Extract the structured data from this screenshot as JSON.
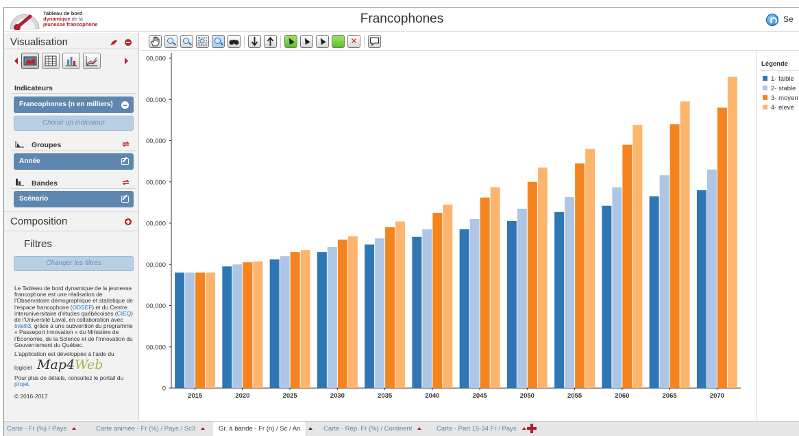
{
  "app": {
    "title": "Francophones",
    "logo": {
      "line1": "Tableau de bord",
      "line2a": "dynamique",
      "line2b": " de la",
      "line3": "jeunesse francophone"
    },
    "header_right": "Se"
  },
  "sidebar": {
    "visualisation_title": "Visualisation",
    "indicators_label": "Indicateurs",
    "indicator_selected": "Francophones (n en milliers)",
    "choose_indicator": "Choisir un indicateur",
    "groups_label": "Groupes",
    "groups_value": "Année",
    "bands_label": "Bandes",
    "bands_value": "Scénario",
    "composition_title": "Composition",
    "filters_title": "Filtres",
    "change_filters": "Changer les filtres",
    "info_text_1": "Le Tableau de bord dynamique de la jeunesse francophone est une réalisation de l'Observatoire démographique et statistique de l'espace francophone (",
    "info_link_odsef": "ODSEF",
    "info_text_2": ") et du Centre interuniversitaire d'études québécoises (",
    "info_link_cieq": "CIEQ",
    "info_text_3": ") de l'Université Laval, en collaboration avec ",
    "info_link_intelli3": "Intelli3",
    "info_text_4": ", grâce à une subvention du programme « Passeport Innovation » du Ministère de l'Économie, de la Science et de l'Innovation du Gouvernement du Québec.",
    "dev_line": "L'application est développée à l'aide du",
    "logiciel": "logiciel",
    "map4web_a": "Map4",
    "map4web_b": "Web",
    "details_text": "Pour plus de détails, consultez le portail du ",
    "details_link": "projet",
    "details_end": ".",
    "copyright": "© 2016-2017"
  },
  "legend": {
    "title": "Légende",
    "items": [
      {
        "label": "1- faible",
        "color": "#2f77b4"
      },
      {
        "label": "2- stable",
        "color": "#aec6e6"
      },
      {
        "label": "3- moyen",
        "color": "#f5841f"
      },
      {
        "label": "4- élevé",
        "color": "#fdb56e"
      }
    ]
  },
  "tabs": [
    {
      "label": "Carte - Fr (%) / Pays"
    },
    {
      "label": "Carte animée - Fr (%) / Pays / Sc3"
    },
    {
      "label": "Gr. à bande - Fr (n) / Sc / An"
    },
    {
      "label": "Carte - Rép. Fr (%) / Continent"
    },
    {
      "label": "Carte - Part 15-34 Fr / Pays"
    }
  ],
  "chart_data": {
    "type": "bar",
    "categories": [
      "2015",
      "2020",
      "2025",
      "2030",
      "2035",
      "2040",
      "2045",
      "2050",
      "2055",
      "2060",
      "2065",
      "2070"
    ],
    "y_tick_labels": [
      "0",
      "00,000",
      "00,000",
      "00,000",
      "00,000",
      "00,000",
      "00,000",
      "00,000",
      "00,000"
    ],
    "ylim": [
      0,
      8
    ],
    "y_ticks": [
      0,
      1,
      2,
      3,
      4,
      5,
      6,
      7,
      8
    ],
    "grid": false,
    "series": [
      {
        "name": "1- faible",
        "color": "#2f77b4",
        "values": [
          2.8,
          2.95,
          3.12,
          3.3,
          3.48,
          3.67,
          3.85,
          4.05,
          4.27,
          4.42,
          4.65,
          4.8
        ]
      },
      {
        "name": "2- stable",
        "color": "#aec6e6",
        "values": [
          2.8,
          3.0,
          3.2,
          3.42,
          3.63,
          3.85,
          4.1,
          4.35,
          4.63,
          4.87,
          5.16,
          5.3
        ]
      },
      {
        "name": "3- moyen",
        "color": "#f5841f",
        "values": [
          2.8,
          3.05,
          3.3,
          3.6,
          3.9,
          4.25,
          4.62,
          5.0,
          5.45,
          5.9,
          6.4,
          6.8
        ]
      },
      {
        "name": "4- élevé",
        "color": "#fdb56e",
        "values": [
          2.8,
          3.07,
          3.35,
          3.68,
          4.04,
          4.45,
          4.87,
          5.35,
          5.8,
          6.38,
          6.95,
          7.55
        ]
      }
    ]
  }
}
